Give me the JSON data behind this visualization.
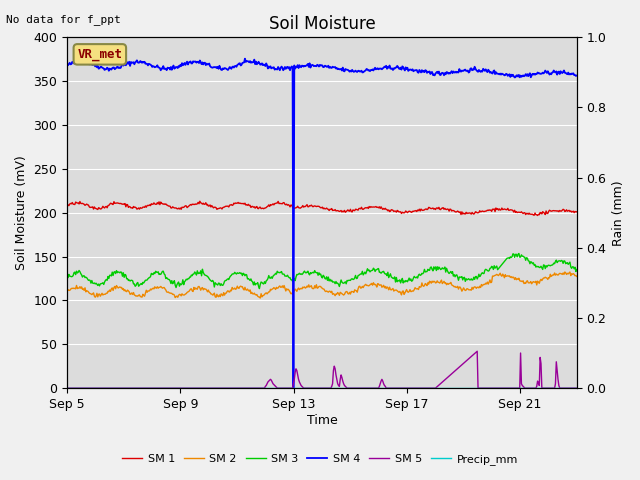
{
  "title": "Soil Moisture",
  "note": "No data for f_ppt",
  "ylabel_left": "Soil Moisture (mV)",
  "ylabel_right": "Rain (mm)",
  "xlabel": "Time",
  "legend_label": "VR_met",
  "x_tick_labels": [
    "Sep 5",
    "Sep 9",
    "Sep 13",
    "Sep 17",
    "Sep 21"
  ],
  "x_tick_positions": [
    0,
    4,
    8,
    12,
    16
  ],
  "xlim": [
    0,
    18
  ],
  "ylim_left": [
    0,
    400
  ],
  "ylim_right": [
    0,
    1.0
  ],
  "yticks_left": [
    0,
    50,
    100,
    150,
    200,
    250,
    300,
    350,
    400
  ],
  "yticks_right": [
    0.0,
    0.2,
    0.4,
    0.6,
    0.8,
    1.0
  ],
  "plot_bg_color": "#dcdcdc",
  "fig_bg_color": "#f0f0f0",
  "colors": {
    "SM1": "#dd0000",
    "SM2": "#ee8800",
    "SM3": "#00cc00",
    "SM4": "#0000ff",
    "SM5": "#990099",
    "Precip": "#00cccc"
  },
  "series_labels": [
    "SM 1",
    "SM 2",
    "SM 3",
    "SM 4",
    "SM 5",
    "Precip_mm"
  ],
  "linewidth": 1.0,
  "grid_color": "#ffffff",
  "title_fontsize": 12,
  "axis_fontsize": 9,
  "tick_fontsize": 9,
  "legend_fontsize": 8
}
